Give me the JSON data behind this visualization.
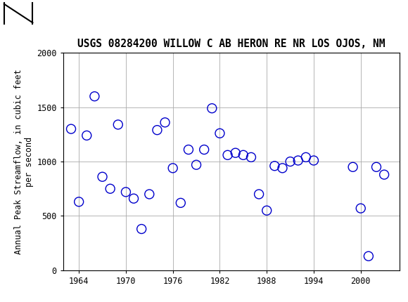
{
  "title": "USGS 08284200 WILLOW C AB HERON RE NR LOS OJOS, NM",
  "ylabel": "Annual Peak Streamflow, in cubic feet\nper second",
  "xlabel": "",
  "years": [
    1963,
    1964,
    1965,
    1966,
    1967,
    1968,
    1969,
    1970,
    1971,
    1972,
    1973,
    1974,
    1975,
    1976,
    1977,
    1978,
    1979,
    1980,
    1981,
    1982,
    1983,
    1984,
    1985,
    1986,
    1987,
    1988,
    1989,
    1990,
    1991,
    1992,
    1993,
    1994,
    1999,
    2000,
    2001,
    2002,
    2003
  ],
  "flows": [
    1300,
    630,
    1240,
    1600,
    860,
    750,
    1340,
    720,
    660,
    380,
    700,
    1290,
    1360,
    940,
    620,
    1110,
    970,
    1110,
    1490,
    1260,
    1060,
    1080,
    1060,
    1040,
    700,
    550,
    960,
    940,
    1000,
    1010,
    1040,
    1010,
    950,
    570,
    130,
    950,
    880
  ],
  "xlim": [
    1962,
    2005
  ],
  "ylim": [
    0,
    2000
  ],
  "xticks": [
    1964,
    1970,
    1976,
    1982,
    1988,
    1994,
    2000
  ],
  "yticks": [
    0,
    500,
    1000,
    1500,
    2000
  ],
  "marker_color": "#0000cc",
  "marker_facecolor": "none",
  "marker_size": 5,
  "grid_color": "#aaaaaa",
  "title_fontsize": 10.5,
  "axis_fontsize": 8.5,
  "tick_fontsize": 8.5,
  "header_color": "#006633",
  "header_text_color": "#ffffff",
  "bg_color": "#ffffff",
  "fig_width": 5.8,
  "fig_height": 4.3,
  "dpi": 100
}
